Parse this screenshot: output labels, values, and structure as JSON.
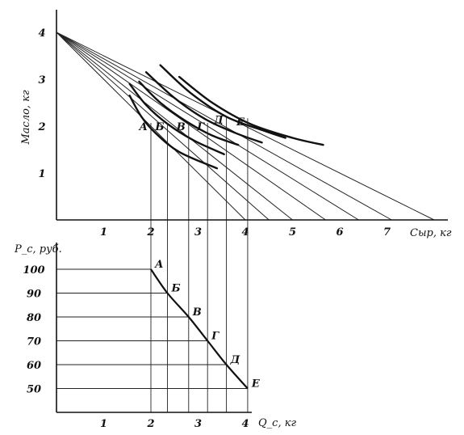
{
  "chart_data": [
    {
      "type": "line",
      "xlabel": "Сыр, кг",
      "ylabel": "Масло, кг",
      "x_ticks": [
        "1",
        "2",
        "3",
        "4",
        "5",
        "6",
        "7"
      ],
      "y_ticks": [
        "1",
        "2",
        "3",
        "4"
      ],
      "xlim": [
        0,
        8.3
      ],
      "ylim": [
        0,
        4
      ],
      "budget_lines": {
        "butter_intercept": 4,
        "cheese_intercepts": [
          4,
          4.5,
          5,
          5.7,
          6.4,
          7.1,
          8
        ]
      },
      "indifference_curves": [
        {
          "points": [
            [
              1.55,
              2.65
            ],
            [
              1.8,
              2.2
            ],
            [
              2.1,
              1.85
            ],
            [
              2.6,
              1.45
            ],
            [
              3.4,
              1.1
            ]
          ]
        },
        {
          "points": [
            [
              1.55,
              2.9
            ],
            [
              1.9,
              2.45
            ],
            [
              2.35,
              2.05
            ],
            [
              2.9,
              1.7
            ],
            [
              3.55,
              1.4
            ]
          ]
        },
        {
          "points": [
            [
              1.75,
              2.95
            ],
            [
              2.2,
              2.5
            ],
            [
              2.75,
              2.1
            ],
            [
              3.3,
              1.8
            ],
            [
              3.85,
              1.6
            ]
          ]
        },
        {
          "points": [
            [
              1.9,
              3.15
            ],
            [
              2.5,
              2.6
            ],
            [
              3.15,
              2.15
            ],
            [
              3.8,
              1.85
            ],
            [
              4.35,
              1.65
            ]
          ]
        },
        {
          "points": [
            [
              2.2,
              3.3
            ],
            [
              2.85,
              2.7
            ],
            [
              3.6,
              2.2
            ],
            [
              4.4,
              1.9
            ],
            [
              4.85,
              1.75
            ]
          ]
        },
        {
          "points": [
            [
              2.6,
              3.05
            ],
            [
              3.3,
              2.5
            ],
            [
              4.1,
              2.05
            ],
            [
              5.0,
              1.75
            ],
            [
              5.65,
              1.6
            ]
          ]
        }
      ],
      "points": [
        {
          "label": "А",
          "x": 2.0,
          "y": 2.0
        },
        {
          "label": "Б",
          "x": 2.35,
          "y": 2.0
        },
        {
          "label": "В",
          "x": 2.8,
          "y": 2.0
        },
        {
          "label": "Г",
          "x": 3.2,
          "y": 2.0
        },
        {
          "label": "Д",
          "x": 3.6,
          "y": 2.15
        },
        {
          "label": "Е",
          "x": 4.05,
          "y": 2.1
        }
      ]
    },
    {
      "type": "line",
      "xlabel": "Q_c, кг",
      "ylabel": "P_c, руб.",
      "x_ticks": [
        "1",
        "2",
        "3",
        "4"
      ],
      "y_ticks": [
        "100",
        "90",
        "80",
        "70",
        "60",
        "50"
      ],
      "series": [
        {
          "points": [
            {
              "label": "А",
              "q": 2.0,
              "p": 100
            },
            {
              "label": "Б",
              "q": 2.35,
              "p": 90
            },
            {
              "label": "В",
              "q": 2.8,
              "p": 80
            },
            {
              "label": "Г",
              "q": 3.2,
              "p": 70
            },
            {
              "label": "Д",
              "q": 3.6,
              "p": 60
            },
            {
              "label": "Е",
              "q": 4.05,
              "p": 50
            }
          ]
        }
      ]
    }
  ]
}
